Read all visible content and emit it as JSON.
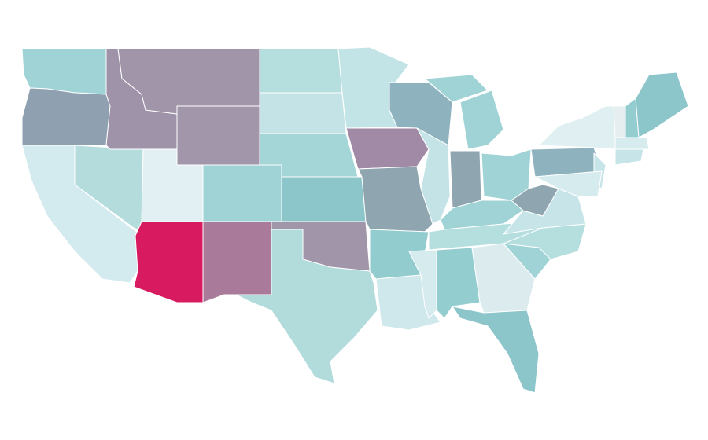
{
  "map": {
    "regions": [
      {
        "color": "#9fd3d6"
      },
      {
        "color": "#8fa0b0"
      },
      {
        "color": "#d3eaee"
      },
      {
        "color": "#b5dcdc"
      },
      {
        "color": "#9e93a8"
      },
      {
        "color": "#a195aa"
      },
      {
        "color": "#a296aa"
      },
      {
        "color": "#e2f0f3"
      },
      {
        "color": "#9fd3d6"
      },
      {
        "color": "#d81b60"
      },
      {
        "color": "#a97a9a"
      },
      {
        "color": "#b5dede"
      },
      {
        "color": "#c3e3e6"
      },
      {
        "color": "#a4d6d8"
      },
      {
        "color": "#8cc6ca"
      },
      {
        "color": "#a195aa"
      },
      {
        "color": "#b2dbdc"
      },
      {
        "color": "#c2e4e6"
      },
      {
        "color": "#a08aa6"
      },
      {
        "color": "#8fa5b0"
      },
      {
        "color": "#93cccf"
      },
      {
        "color": "#cfe8ec"
      },
      {
        "color": "#8fb3be"
      },
      {
        "color": "#c3e3e6"
      },
      {
        "color": "#9fd3d6"
      },
      {
        "color": "#9fd3d6"
      },
      {
        "color": "#8fa5b0"
      },
      {
        "color": "#9fd3d6"
      },
      {
        "color": "#9fd3d6"
      },
      {
        "color": "#b5dede"
      },
      {
        "color": "#d6ebee"
      },
      {
        "color": "#94cdd0"
      },
      {
        "color": "#dcecee"
      },
      {
        "color": "#8cc6ca"
      },
      {
        "color": "#9fd3d6"
      },
      {
        "color": "#b5dede"
      },
      {
        "color": "#c7e5e8"
      },
      {
        "color": "#8fa5b0"
      },
      {
        "color": "#8fb3be"
      },
      {
        "color": "#e0eff2"
      },
      {
        "color": "#c7e5e8"
      },
      {
        "color": "#d6ebee"
      },
      {
        "color": "#e6eef0"
      },
      {
        "color": "#94cdd0"
      },
      {
        "color": "#8cc6ca"
      },
      {
        "color": "#d6ebee"
      },
      {
        "color": "#c7e5e8"
      }
    ]
  }
}
